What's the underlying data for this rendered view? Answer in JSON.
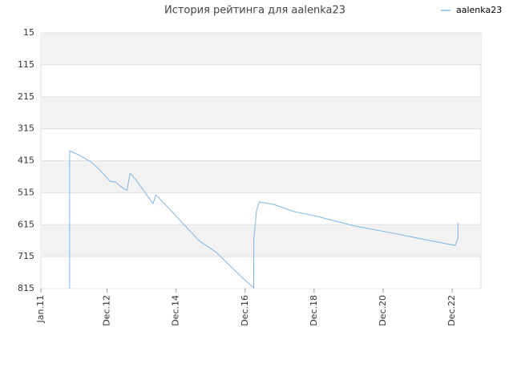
{
  "chart_data": {
    "type": "line",
    "title": "История рейтинга для aalenka23",
    "x": [
      "2011-11",
      "2011-11",
      "2011-12",
      "2012-02",
      "2012-06",
      "2012-09",
      "2013-01",
      "2013-03",
      "2013-06",
      "2013-07",
      "2013-08",
      "2013-10",
      "2014-04",
      "2014-05",
      "2014-09",
      "2015-08",
      "2016-02",
      "2016-10",
      "2017-03",
      "2017-03",
      "2017-04",
      "2017-05",
      "2017-10",
      "2018-05",
      "2019-01",
      "2020-02",
      "2021-02",
      "2022-01",
      "2023-01",
      "2023-02",
      "2023-02"
    ],
    "series": [
      {
        "name": "aalenka23",
        "color": "#7cb5ec",
        "values": [
          815,
          384,
          388,
          396,
          416,
          439,
          479,
          482,
          504,
          507,
          454,
          474,
          549,
          522,
          559,
          665,
          702,
          772,
          813,
          665,
          569,
          544,
          552,
          574,
          589,
          619,
          639,
          659,
          680,
          659,
          609
        ]
      }
    ],
    "xlim": [
      "2011-01",
      "2023-10"
    ],
    "xticks": [
      {
        "value": "2011-01",
        "label": "Jan.11"
      },
      {
        "value": "2012-12",
        "label": "Dec.12"
      },
      {
        "value": "2014-12",
        "label": "Dec.14"
      },
      {
        "value": "2016-12",
        "label": "Dec.16"
      },
      {
        "value": "2018-12",
        "label": "Dec.18"
      },
      {
        "value": "2020-12",
        "label": "Dec.20"
      },
      {
        "value": "2022-12",
        "label": "Dec.22"
      }
    ],
    "ylim": [
      815,
      15
    ],
    "yticks": [
      15,
      115,
      215,
      315,
      415,
      515,
      615,
      715,
      815
    ],
    "grid": true,
    "banded": true,
    "legend": "top-right"
  }
}
